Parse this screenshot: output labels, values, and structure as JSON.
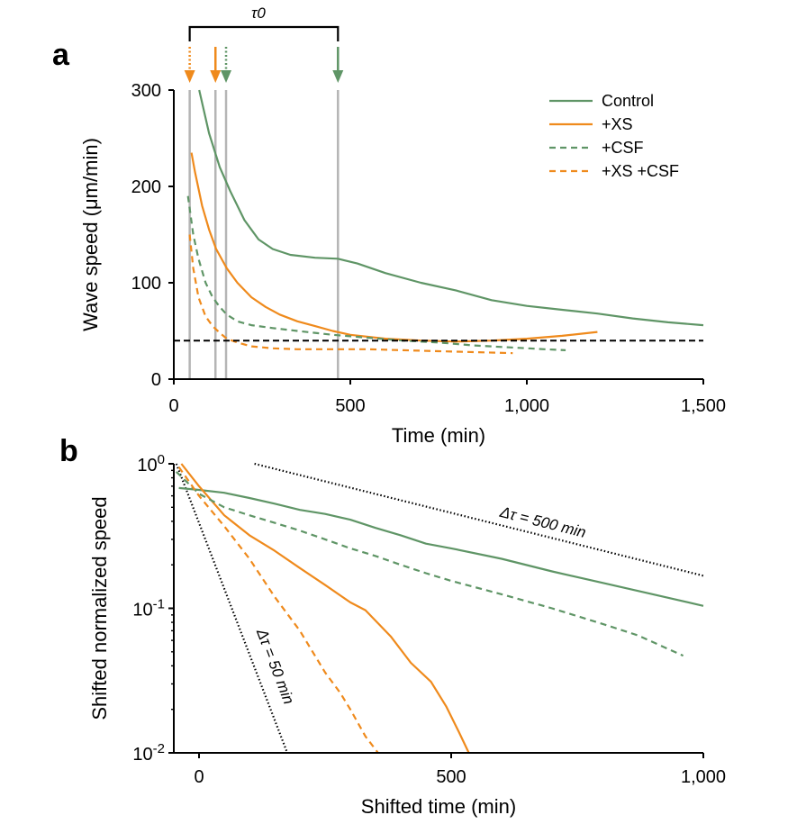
{
  "colors": {
    "control": "#5f9566",
    "xs": "#ef8a1c",
    "threshold": "#000000",
    "marker_line": "#b5b5b5"
  },
  "chart_data": [
    {
      "panel": "a",
      "type": "line",
      "xlabel": "Time (min)",
      "ylabel": "Wave speed (μm/min)",
      "xlim": [
        0,
        1500
      ],
      "ylim": [
        0,
        300
      ],
      "xticks": [
        0,
        500,
        1000,
        1500
      ],
      "xtick_labels": [
        "0",
        "500",
        "1,000",
        "1,500"
      ],
      "yticks": [
        0,
        100,
        200,
        300
      ],
      "ytick_labels": [
        "0",
        "100",
        "200",
        "300"
      ],
      "grid": false,
      "legend_position": "top-right",
      "tau_label": "τ0",
      "threshold": 40,
      "markers": [
        {
          "x": 45,
          "color": "xs",
          "style": "dotted"
        },
        {
          "x": 118,
          "color": "xs",
          "style": "solid"
        },
        {
          "x": 148,
          "color": "control",
          "style": "dotted"
        },
        {
          "x": 465,
          "color": "control",
          "style": "solid"
        }
      ],
      "series": [
        {
          "name": "Control",
          "color": "control",
          "dash": "solid",
          "x": [
            72,
            100,
            130,
            160,
            200,
            240,
            280,
            330,
            400,
            465,
            520,
            600,
            700,
            800,
            900,
            1000,
            1100,
            1200,
            1300,
            1400,
            1500
          ],
          "y": [
            300,
            255,
            220,
            195,
            165,
            145,
            135,
            129,
            126,
            125,
            120,
            110,
            100,
            92,
            82,
            76,
            72,
            68,
            63,
            59,
            56
          ]
        },
        {
          "name": "+XS",
          "color": "xs",
          "dash": "solid",
          "x": [
            50,
            60,
            80,
            100,
            120,
            150,
            180,
            220,
            260,
            300,
            350,
            400,
            450,
            500,
            600,
            700,
            800,
            900,
            1000,
            1100,
            1200
          ],
          "y": [
            235,
            215,
            180,
            155,
            135,
            115,
            100,
            85,
            75,
            67,
            60,
            55,
            50,
            46,
            42,
            40,
            39,
            40,
            42,
            45,
            49
          ]
        },
        {
          "name": "+CSF",
          "color": "control",
          "dash": "dashed",
          "x": [
            40,
            55,
            70,
            90,
            110,
            130,
            150,
            180,
            220,
            280,
            350,
            450,
            550,
            650,
            750,
            850,
            950,
            1050,
            1110
          ],
          "y": [
            190,
            150,
            125,
            100,
            85,
            75,
            67,
            60,
            56,
            53,
            50,
            46,
            43,
            40,
            38,
            35,
            33,
            31,
            30
          ]
        },
        {
          "name": "+XS +CSF",
          "color": "xs",
          "dash": "dashed",
          "x": [
            45,
            55,
            70,
            90,
            110,
            130,
            150,
            180,
            220,
            280,
            350,
            450,
            550,
            650,
            750,
            850,
            960
          ],
          "y": [
            150,
            115,
            85,
            65,
            55,
            48,
            42,
            38,
            34,
            32,
            31,
            31,
            31,
            30,
            29,
            28,
            27
          ]
        }
      ]
    },
    {
      "panel": "b",
      "type": "line",
      "xlabel": "Shifted time (min)",
      "ylabel": "Shifted normalized speed",
      "xlim": [
        -50,
        1000
      ],
      "ylim": [
        0.01,
        1
      ],
      "yscale": "log",
      "xticks": [
        0,
        500,
        1000
      ],
      "xtick_labels": [
        "0",
        "500",
        "1,000"
      ],
      "yticks": [
        1,
        0.1,
        0.01
      ],
      "ytick_labels": [
        {
          "base": "10",
          "exp": "0"
        },
        {
          "base": "10",
          "exp": "-1"
        },
        {
          "base": "10",
          "exp": "-2"
        }
      ],
      "grid": false,
      "reference_lines": [
        {
          "label": "Δτ = 50 min",
          "x": [
            -45,
            175
          ],
          "y": [
            1,
            0.01
          ]
        },
        {
          "label": "Δτ = 500 min",
          "x": [
            110,
            1000
          ],
          "y": [
            1,
            0.168
          ]
        }
      ],
      "series": [
        {
          "name": "Control",
          "color": "control",
          "dash": "solid",
          "x": [
            -40,
            0,
            50,
            100,
            150,
            200,
            250,
            300,
            350,
            400,
            450,
            500,
            600,
            700,
            800,
            900,
            1000
          ],
          "y": [
            0.68,
            0.66,
            0.63,
            0.58,
            0.53,
            0.48,
            0.45,
            0.41,
            0.36,
            0.32,
            0.28,
            0.26,
            0.22,
            0.18,
            0.15,
            0.125,
            0.104
          ]
        },
        {
          "name": "+XS",
          "color": "xs",
          "dash": "solid",
          "x": [
            -35,
            0,
            50,
            100,
            150,
            200,
            250,
            300,
            330,
            380,
            420,
            460,
            490,
            515,
            535
          ],
          "y": [
            1.0,
            0.7,
            0.44,
            0.32,
            0.25,
            0.19,
            0.145,
            0.11,
            0.097,
            0.064,
            0.042,
            0.031,
            0.021,
            0.014,
            0.01
          ]
        },
        {
          "name": "+CSF",
          "color": "control",
          "dash": "dashed",
          "x": [
            -45,
            0,
            50,
            100,
            150,
            200,
            250,
            300,
            350,
            400,
            450,
            500,
            600,
            700,
            800,
            870,
            960
          ],
          "y": [
            0.88,
            0.62,
            0.5,
            0.44,
            0.39,
            0.345,
            0.3,
            0.26,
            0.23,
            0.2,
            0.175,
            0.155,
            0.125,
            0.1,
            0.078,
            0.065,
            0.047
          ]
        },
        {
          "name": "+XS +CSF",
          "color": "xs",
          "dash": "dashed",
          "x": [
            -40,
            0,
            50,
            100,
            150,
            200,
            250,
            280,
            300,
            330,
            355
          ],
          "y": [
            0.95,
            0.6,
            0.37,
            0.22,
            0.12,
            0.07,
            0.036,
            0.026,
            0.02,
            0.013,
            0.01
          ]
        }
      ]
    }
  ]
}
